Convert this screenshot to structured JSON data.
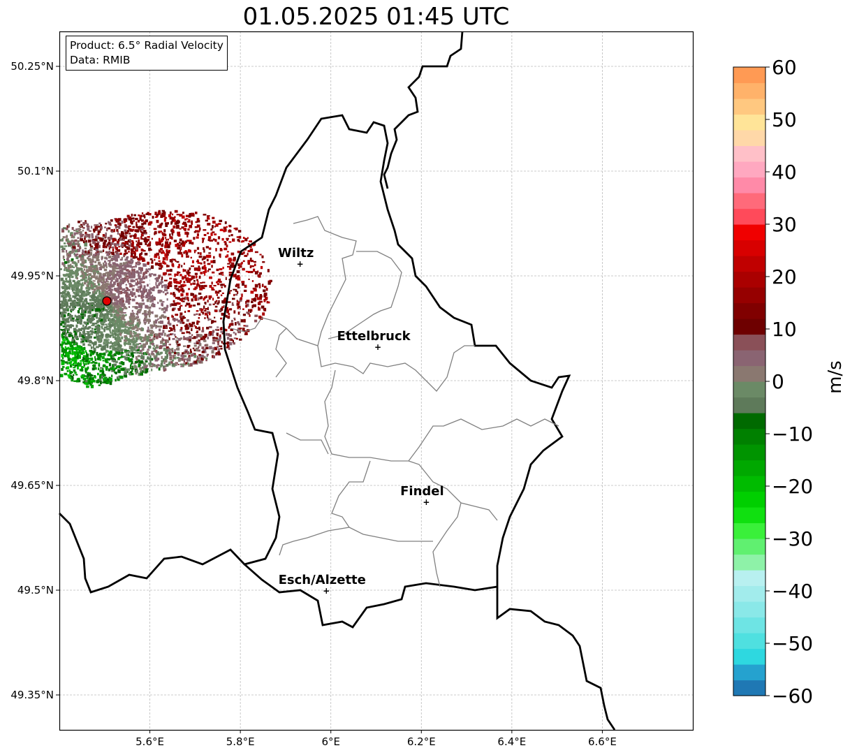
{
  "title": "01.05.2025 01:45 UTC",
  "info": {
    "product": "Product: 6.5° Radial Velocity",
    "source": "Data: RMIB"
  },
  "map": {
    "lon_range": [
      5.4,
      6.8
    ],
    "lat_range": [
      49.3,
      50.3
    ],
    "lon_ticks": [
      {
        "value": 5.6,
        "label": "5.6°E"
      },
      {
        "value": 5.8,
        "label": "5.8°E"
      },
      {
        "value": 6.0,
        "label": "6°E"
      },
      {
        "value": 6.2,
        "label": "6.2°E"
      },
      {
        "value": 6.4,
        "label": "6.4°E"
      },
      {
        "value": 6.6,
        "label": "6.6°E"
      }
    ],
    "lat_ticks": [
      {
        "value": 50.25,
        "label": "50.25°N"
      },
      {
        "value": 50.1,
        "label": "50.1°N"
      },
      {
        "value": 49.95,
        "label": "49.95°N"
      },
      {
        "value": 49.8,
        "label": "49.8°N"
      },
      {
        "value": 49.65,
        "label": "49.65°N"
      },
      {
        "value": 49.5,
        "label": "49.5°N"
      },
      {
        "value": 49.35,
        "label": "49.35°N"
      }
    ],
    "grid": true,
    "radar_site": {
      "lon": 5.505,
      "lat": 49.914
    },
    "cities": [
      {
        "name": "Wiltz",
        "lon": 5.932,
        "lat": 49.967
      },
      {
        "name": "Ettelbruck",
        "lon": 6.104,
        "lat": 49.848
      },
      {
        "name": "Findel",
        "lon": 6.211,
        "lat": 49.626
      },
      {
        "name": "Esch/Alzette",
        "lon": 5.99,
        "lat": 49.499
      }
    ]
  },
  "colorbar": {
    "label": "m/s",
    "min": -60,
    "max": 60,
    "ticks": [
      {
        "value": 60,
        "label": "60"
      },
      {
        "value": 50,
        "label": "50"
      },
      {
        "value": 40,
        "label": "40"
      },
      {
        "value": 30,
        "label": "30"
      },
      {
        "value": 20,
        "label": "20"
      },
      {
        "value": 10,
        "label": "10"
      },
      {
        "value": 0,
        "label": "0"
      },
      {
        "value": -10,
        "label": "−10"
      },
      {
        "value": -20,
        "label": "−20"
      },
      {
        "value": -30,
        "label": "−30"
      },
      {
        "value": -40,
        "label": "−40"
      },
      {
        "value": -50,
        "label": "−50"
      },
      {
        "value": -60,
        "label": "−60"
      }
    ],
    "colors": [
      "#1f78b4",
      "#25a2cf",
      "#2ed8e0",
      "#4fe0e0",
      "#6ee4e4",
      "#8ae8e8",
      "#a2ecec",
      "#b8f0f0",
      "#8ef2a8",
      "#60f070",
      "#3af03a",
      "#10e010",
      "#00cf00",
      "#00bb00",
      "#00a800",
      "#009400",
      "#008000",
      "#006a00",
      "#5e7a5a",
      "#6b8a66",
      "#8a7870",
      "#8a6472",
      "#8a5058",
      "#6e0000",
      "#800000",
      "#960000",
      "#aa0000",
      "#c00000",
      "#d80000",
      "#f00000",
      "#ff4a5a",
      "#ff6a7a",
      "#ff8aa8",
      "#ffa8c0",
      "#ffc0c8",
      "#ffd8a8",
      "#ffe498",
      "#ffc880",
      "#ffb26a",
      "#ff9a54"
    ]
  }
}
